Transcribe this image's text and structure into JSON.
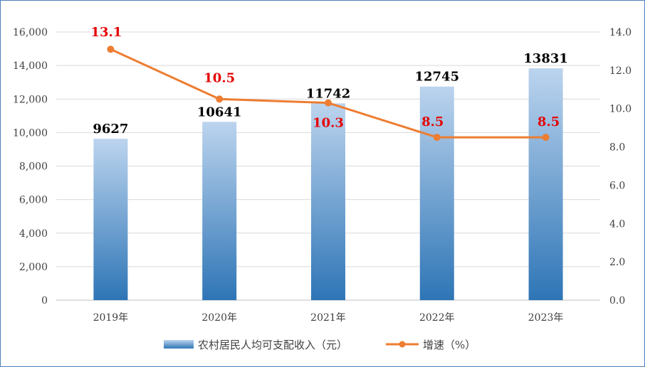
{
  "chart_data": {
    "type": "bar",
    "categories": [
      "2019年",
      "2020年",
      "2021年",
      "2022年",
      "2023年"
    ],
    "series": [
      {
        "name": "农村居民人均可支配收入（元）",
        "type": "bar",
        "axis": "left",
        "values": [
          9627,
          10641,
          11742,
          12745,
          13831
        ],
        "labels": [
          "9627",
          "10641",
          "11742",
          "12745",
          "13831"
        ]
      },
      {
        "name": "增速（%）",
        "type": "line",
        "axis": "right",
        "values": [
          13.1,
          10.5,
          10.3,
          8.5,
          8.5
        ],
        "labels": [
          "13.1",
          "10.5",
          "10.3",
          "8.5",
          "8.5"
        ]
      }
    ],
    "y_left": {
      "min": 0,
      "max": 16000,
      "ticks": [
        "0",
        "2,000",
        "4,000",
        "6,000",
        "8,000",
        "10,000",
        "12,000",
        "14,000",
        "16,000"
      ]
    },
    "y_right": {
      "min": 0,
      "max": 14,
      "ticks": [
        "0.0",
        "2.0",
        "4.0",
        "6.0",
        "8.0",
        "10.0",
        "12.0",
        "14.0"
      ]
    },
    "grid": "horizontal",
    "legend_position": "bottom",
    "colors": {
      "bar_top": "#bcd4ee",
      "bar_bottom": "#2e75b6",
      "line": "#ed7d31",
      "bar_label": "#000000",
      "line_label": "#e60000",
      "grid": "#d9d9d9",
      "border": "#4f81bd"
    }
  }
}
